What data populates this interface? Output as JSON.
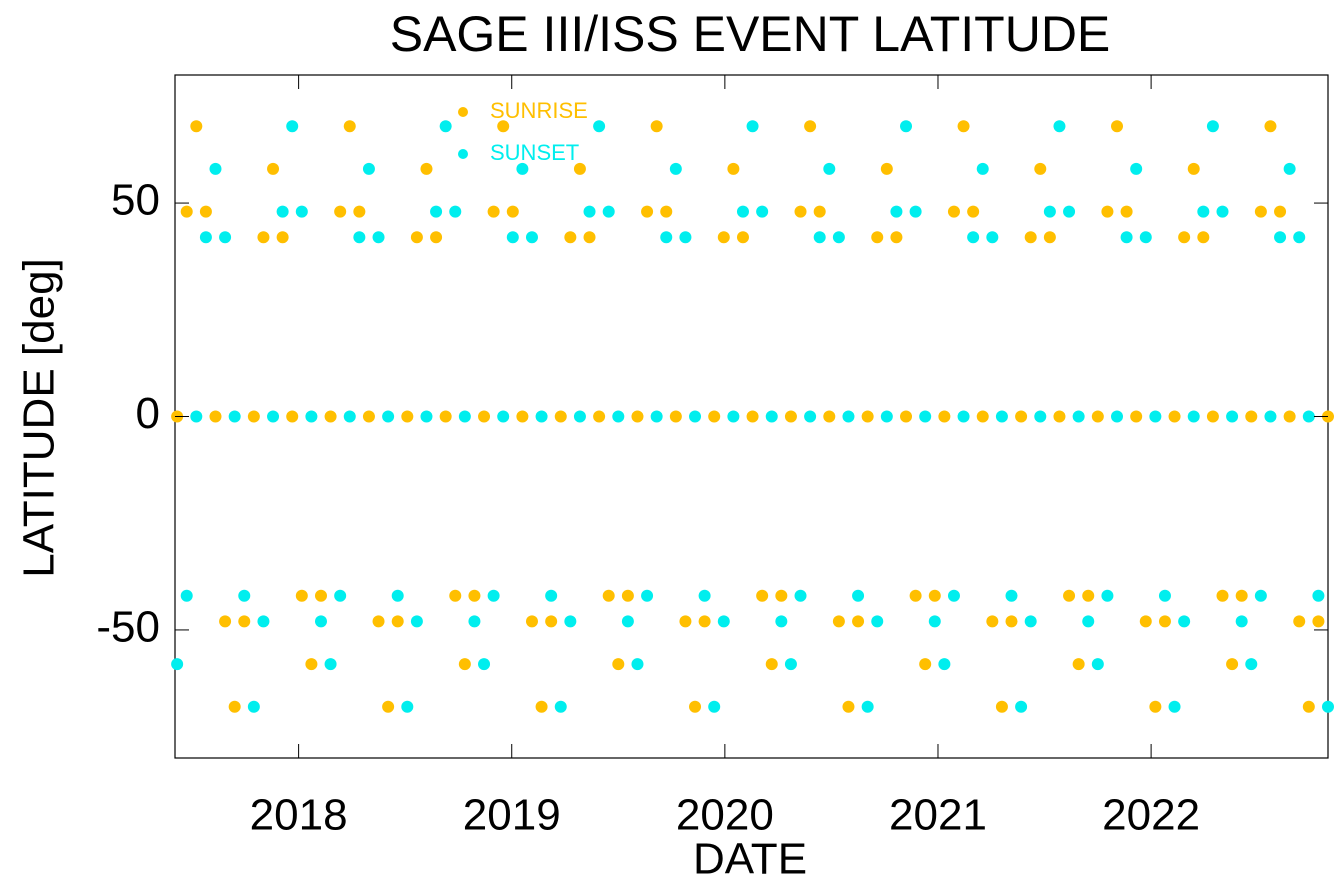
{
  "chart_data": {
    "type": "scatter",
    "title": "SAGE III/ISS EVENT LATITUDE",
    "x_label": "DATE",
    "y_label": "LATITUDE [deg]",
    "xlim": [
      2017.42,
      2022.83
    ],
    "ylim": [
      -80,
      80
    ],
    "xticks": [
      2018,
      2019,
      2020,
      2021,
      2022
    ],
    "yticks": [
      -50,
      0,
      50
    ],
    "legend": "upper left",
    "x": [
      2017.43,
      2017.475,
      2017.52,
      2017.565,
      2017.61,
      2017.655,
      2017.7,
      2017.745,
      2017.79,
      2017.835,
      2017.88,
      2017.925,
      2017.97,
      2018.015,
      2018.06,
      2018.105,
      2018.15,
      2018.195,
      2018.24,
      2018.285,
      2018.33,
      2018.375,
      2018.42,
      2018.465,
      2018.51,
      2018.555,
      2018.6,
      2018.645,
      2018.69,
      2018.735,
      2018.78,
      2018.825,
      2018.87,
      2018.915,
      2018.96,
      2019.005,
      2019.05,
      2019.095,
      2019.14,
      2019.185,
      2019.23,
      2019.275,
      2019.32,
      2019.365,
      2019.41,
      2019.455,
      2019.5,
      2019.545,
      2019.59,
      2019.635,
      2019.68,
      2019.725,
      2019.77,
      2019.815,
      2019.86,
      2019.905,
      2019.95,
      2019.995,
      2020.04,
      2020.085,
      2020.13,
      2020.175,
      2020.22,
      2020.265,
      2020.31,
      2020.355,
      2020.4,
      2020.445,
      2020.49,
      2020.535,
      2020.58,
      2020.625,
      2020.67,
      2020.715,
      2020.76,
      2020.805,
      2020.85,
      2020.895,
      2020.94,
      2020.985,
      2021.03,
      2021.075,
      2021.12,
      2021.165,
      2021.21,
      2021.255,
      2021.3,
      2021.345,
      2021.39,
      2021.435,
      2021.48,
      2021.525,
      2021.57,
      2021.615,
      2021.66,
      2021.705,
      2021.75,
      2021.795,
      2021.84,
      2021.885,
      2021.93,
      2021.975,
      2022.02,
      2022.065,
      2022.11,
      2022.155,
      2022.2,
      2022.245,
      2022.29,
      2022.335,
      2022.38,
      2022.425,
      2022.47,
      2022.515,
      2022.56,
      2022.605,
      2022.65,
      2022.695,
      2022.74,
      2022.785,
      2022.83
    ],
    "series": [
      {
        "name": "SUNRISE",
        "color": "#ffbf00",
        "values": [
          0,
          48,
          68,
          48,
          0,
          -48,
          -68,
          -48,
          0,
          42,
          58,
          42,
          0,
          -42,
          -58,
          -42,
          0,
          48,
          68,
          48,
          0,
          -48,
          -68,
          -48,
          0,
          42,
          58,
          42,
          0,
          -42,
          -58,
          -42,
          0,
          48,
          68,
          48,
          0,
          -48,
          -68,
          -48,
          0,
          42,
          58,
          42,
          0,
          -42,
          -58,
          -42,
          0,
          48,
          68,
          48,
          0,
          -48,
          -68,
          -48,
          0,
          42,
          58,
          42,
          0,
          -42,
          -58,
          -42,
          0,
          48,
          68,
          48,
          0,
          -48,
          -68,
          -48,
          0,
          42,
          58,
          42,
          0,
          -42,
          -58,
          -42,
          0,
          48,
          68,
          48,
          0,
          -48,
          -68,
          -48,
          0,
          42,
          58,
          42,
          0,
          -42,
          -58,
          -42,
          0,
          48,
          68,
          48,
          0,
          -48,
          -68,
          -48,
          0,
          42,
          58,
          42,
          0,
          -42,
          -58,
          -42,
          0,
          48,
          68,
          48,
          0,
          -48,
          -68,
          -48,
          0
        ]
      },
      {
        "name": "SUNSET",
        "color": "#00eeee",
        "values": [
          -58,
          -42,
          0,
          42,
          58,
          42,
          0,
          -42,
          -68,
          -48,
          0,
          48,
          68,
          48,
          0,
          -48,
          -58,
          -42,
          0,
          42,
          58,
          42,
          0,
          -42,
          -68,
          -48,
          0,
          48,
          68,
          48,
          0,
          -48,
          -58,
          -42,
          0,
          42,
          58,
          42,
          0,
          -42,
          -68,
          -48,
          0,
          48,
          68,
          48,
          0,
          -48,
          -58,
          -42,
          0,
          42,
          58,
          42,
          0,
          -42,
          -68,
          -48,
          0,
          48,
          68,
          48,
          0,
          -48,
          -58,
          -42,
          0,
          42,
          58,
          42,
          0,
          -42,
          -68,
          -48,
          0,
          48,
          68,
          48,
          0,
          -48,
          -58,
          -42,
          0,
          42,
          58,
          42,
          0,
          -42,
          -68,
          -48,
          0,
          48,
          68,
          48,
          0,
          -48,
          -58,
          -42,
          0,
          42,
          58,
          42,
          0,
          -42,
          -68,
          -48,
          0,
          48,
          68,
          48,
          0,
          -48,
          -58,
          -42,
          0,
          42,
          58,
          42,
          0,
          -42,
          -68
        ]
      }
    ]
  }
}
